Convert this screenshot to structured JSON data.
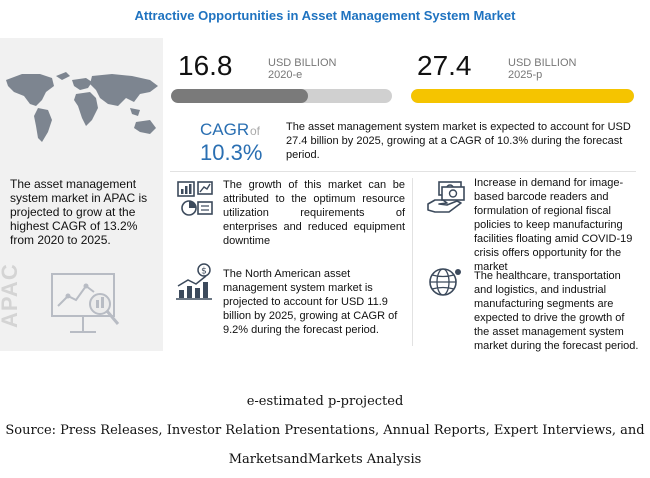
{
  "title": "Attractive Opportunities in Asset Management System Market",
  "apac": {
    "text": "The asset management system market in APAC is projected to grow at the highest CAGR of 13.2% from 2020 to 2025.",
    "vertical_label": "APAC"
  },
  "stats": [
    {
      "value": "16.8",
      "unit": "USD BILLION",
      "year": "2020-e",
      "bar_fill": 0.62,
      "color": "#7a7a7a"
    },
    {
      "value": "27.4",
      "unit": "USD BILLION",
      "year": "2025-p",
      "bar_fill": 1.0,
      "color": "#f5c400"
    }
  ],
  "cagr": {
    "label": "CAGR",
    "of": "of",
    "value": "10.3%",
    "description": "The asset management system market is expected to account for USD 27.4 billion by 2025, growing at a CAGR of 10.3% during the forecast period."
  },
  "insights": [
    {
      "icon": "growth-chart-icon",
      "text": "The growth of this market can be attributed to the optimum resource utilization requirements of enterprises and reduced equipment downtime"
    },
    {
      "icon": "hand-money-icon",
      "text": "Increase in demand for image-based barcode readers and formulation of regional fiscal policies to keep manufacturing facilities floating amid COVID-19 crisis offers opportunity for the market"
    },
    {
      "icon": "dollar-bar-chart-icon",
      "text": "The North American asset management system market is projected to account for USD 11.9 billion by 2025, growing at CAGR of 9.2% during the forecast period."
    },
    {
      "icon": "globe-icon",
      "text": "The healthcare, transportation and logistics, and industrial manufacturing segments are expected to drive the growth of the asset management system market during the forecast period."
    }
  ],
  "footer": {
    "legend": "e-estimated p-projected",
    "source_line1": "Source: Press Releases, Investor Relation Presentations, Annual Reports, Expert Interviews, and",
    "source_line2": "MarketsandMarkets Analysis"
  }
}
